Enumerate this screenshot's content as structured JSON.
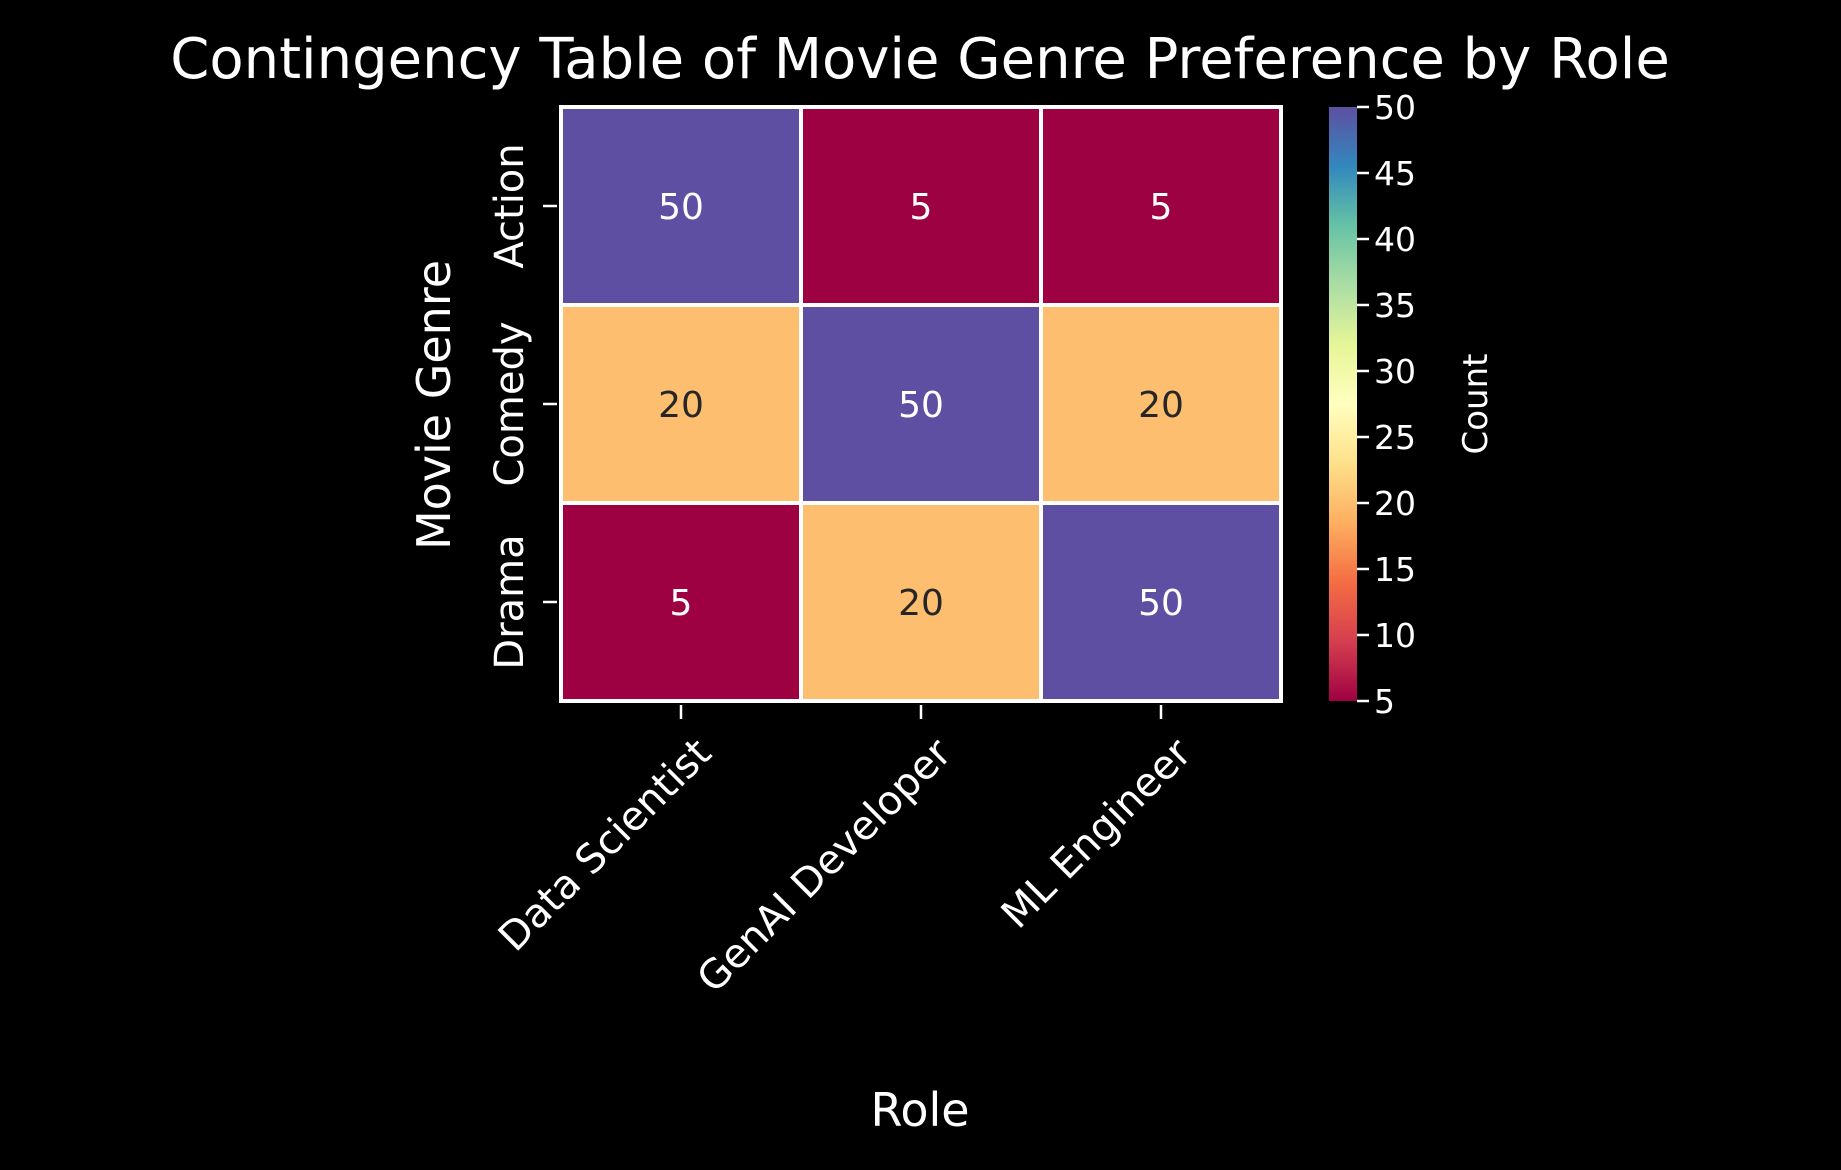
{
  "chart_data": {
    "type": "heatmap",
    "title": "Contingency Table of Movie Genre Preference by Role",
    "xlabel": "Role",
    "ylabel": "Movie Genre",
    "x_categories": [
      "Data Scientist",
      "GenAI Developer",
      "ML Engineer"
    ],
    "y_categories": [
      "Action",
      "Comedy",
      "Drama"
    ],
    "values": [
      [
        50,
        5,
        5
      ],
      [
        20,
        50,
        20
      ],
      [
        5,
        20,
        50
      ]
    ],
    "colorbar": {
      "label": "Count",
      "range": [
        5,
        50
      ],
      "ticks": [
        5,
        10,
        15,
        20,
        25,
        30,
        35,
        40,
        45,
        50
      ],
      "colormap": "Spectral"
    },
    "colors": {
      "background": "#000000",
      "text": "#ffffff",
      "cell_border": "#ffffff"
    }
  }
}
